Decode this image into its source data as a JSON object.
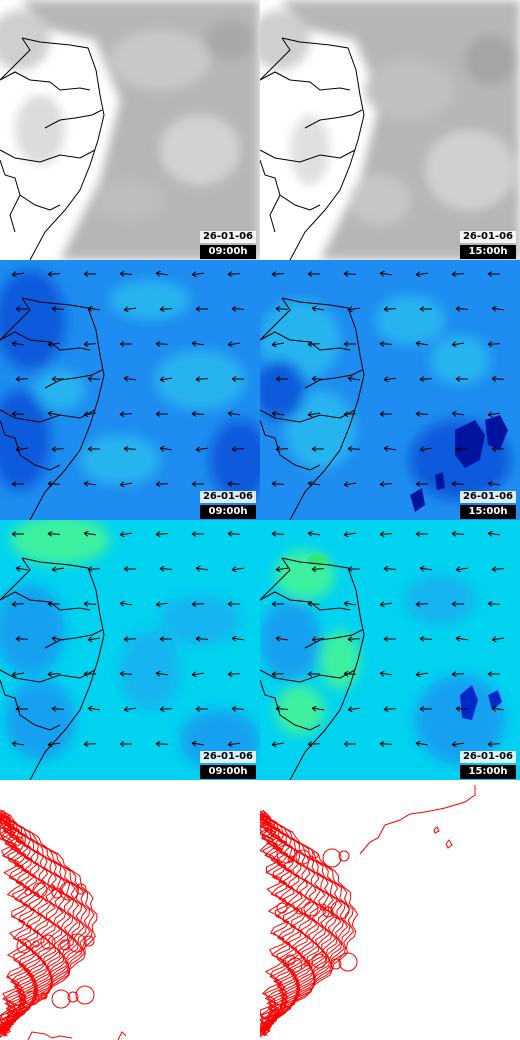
{
  "panels": [
    {
      "id": "cloud-0900",
      "kind": "satellite",
      "date": "26-01-06",
      "time": "09:00h"
    },
    {
      "id": "cloud-1500",
      "kind": "satellite",
      "date": "26-01-06",
      "time": "15:00h"
    },
    {
      "id": "wind-a-0900",
      "kind": "wind-field",
      "date": "26-01-06",
      "time": "09:00h"
    },
    {
      "id": "wind-a-1500",
      "kind": "wind-field",
      "date": "26-01-06",
      "time": "15:00h"
    },
    {
      "id": "wind-b-0900",
      "kind": "wind-field",
      "date": "26-01-06",
      "time": "09:00h"
    },
    {
      "id": "wind-b-1500",
      "kind": "wind-field",
      "date": "26-01-06",
      "time": "15:00h"
    },
    {
      "id": "contour-0900",
      "kind": "contour",
      "date": "",
      "time": ""
    },
    {
      "id": "contour-1500",
      "kind": "contour",
      "date": "",
      "time": ""
    }
  ],
  "colors": {
    "cloud_bg": "#ffffff",
    "cloud_gray": "#b4b4b4",
    "wind_a_base": "#1e8cf0",
    "wind_a_dark": "#0a5adc",
    "wind_a_deep": "#0014a0",
    "wind_a_light": "#28b4f0",
    "wind_b_base": "#00d2f0",
    "wind_b_mid": "#14a0f0",
    "wind_b_green": "#3cf0a0",
    "wind_b_deep": "#0028c8",
    "coast": "#000000",
    "contour": "#ff0000",
    "stamp_bg": "#000000",
    "stamp_text": "#ffffff"
  },
  "icons": {
    "wind_arrow": "arrow-icon"
  }
}
